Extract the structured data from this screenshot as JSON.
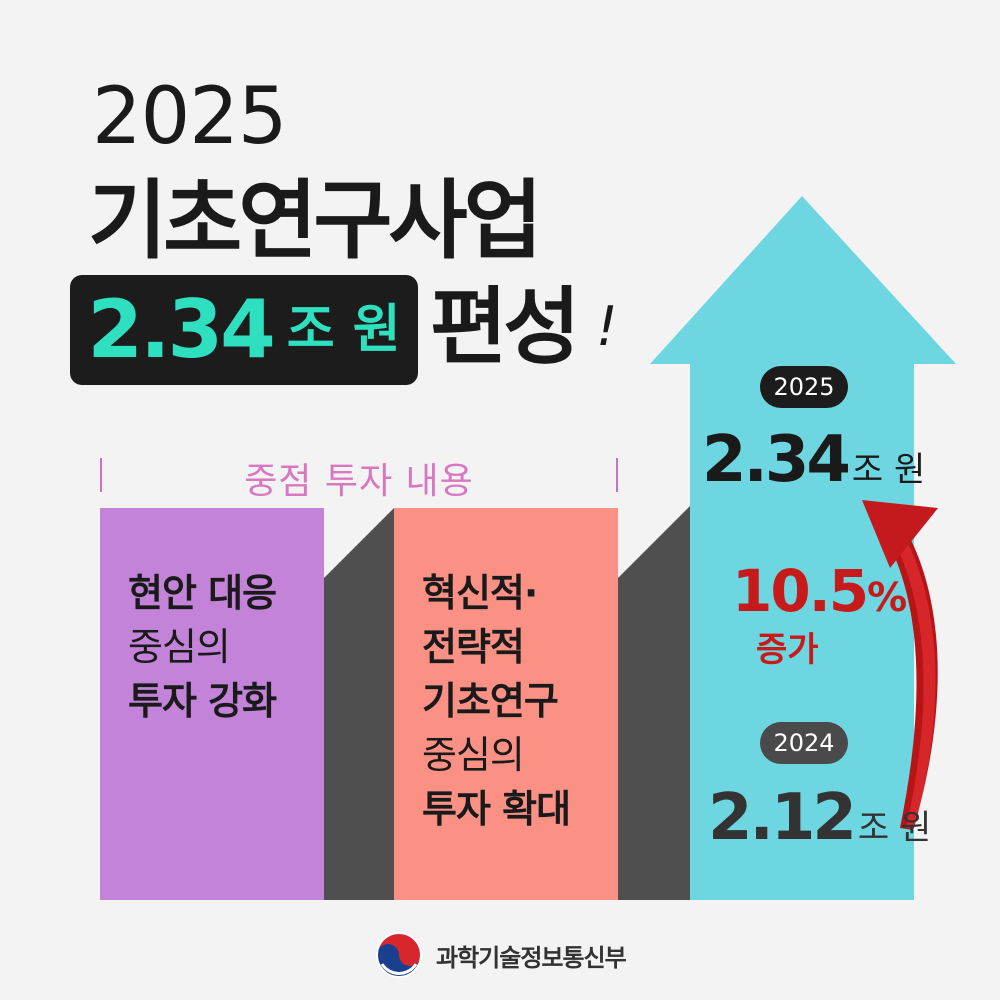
{
  "header": {
    "year": "2025",
    "title": "기초연구사업",
    "amount_number": "2.34",
    "amount_unit": "조 원",
    "suffix": "편성",
    "exclaim": "!"
  },
  "focus": {
    "label": "중점 투자 내용",
    "cards": [
      {
        "bold1": "현안 대응",
        "normal": "중심의",
        "bold2": "투자 강화",
        "color": "#c383d8"
      },
      {
        "bold_lines": [
          "혁신적·",
          "전략적",
          "기초연구"
        ],
        "normal": "중심의",
        "bold2": "투자 확대",
        "color": "#fb9085"
      }
    ]
  },
  "budget": {
    "year_2025": "2025",
    "amount_2025_number": "2.34",
    "amount_2025_unit": "조 원",
    "increase_number": "10.5",
    "increase_sign": "%",
    "increase_label": "증가",
    "year_2024": "2024",
    "amount_2024_number": "2.12",
    "amount_2024_unit": "조 원",
    "arrow_color": "#6dd6e0"
  },
  "footer": {
    "ministry": "과학기술정보통신부"
  },
  "icons": {
    "logo": "taegeuk-logo-icon",
    "growth_arrow": "curved-arrow-up-icon",
    "big_arrow": "arrow-up-icon"
  }
}
